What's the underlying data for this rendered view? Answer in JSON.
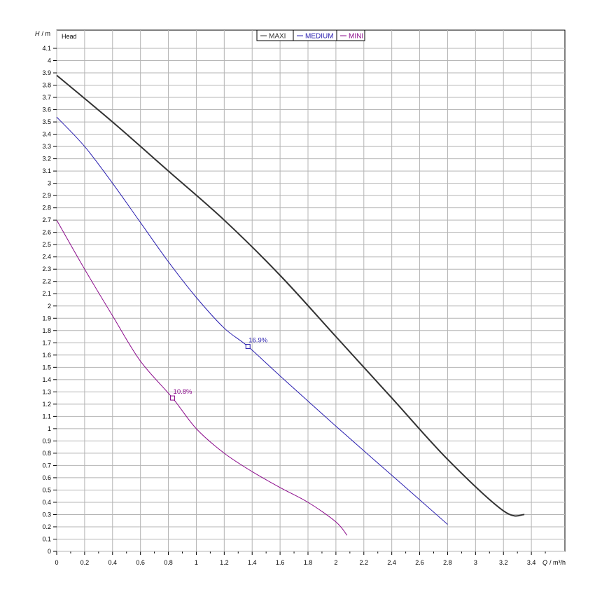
{
  "chart_data": {
    "type": "line",
    "title": "Head",
    "ylabel_symbol": "H",
    "ylabel_unit": "/ m",
    "xlabel_symbol": "Q",
    "xlabel_unit": "/ m³/h",
    "xlim": [
      0,
      3.6
    ],
    "ylim": [
      0,
      4.1
    ],
    "x_ticks": [
      "0",
      "0.2",
      "0.4",
      "0.6",
      "0.8",
      "1",
      "1.2",
      "1.4",
      "1.6",
      "1.8",
      "2",
      "2.2",
      "2.4",
      "2.6",
      "2.8",
      "3",
      "3.2",
      "3.4"
    ],
    "y_ticks": [
      "0",
      "0.1",
      "0.2",
      "0.3",
      "0.4",
      "0.5",
      "0.6",
      "0.7",
      "0.8",
      "0.9",
      "1",
      "1.1",
      "1.2",
      "1.3",
      "1.4",
      "1.5",
      "1.6",
      "1.7",
      "1.8",
      "1.9",
      "2",
      "2.1",
      "2.2",
      "2.3",
      "2.4",
      "2.5",
      "2.6",
      "2.7",
      "2.8",
      "2.9",
      "3",
      "3.1",
      "3.2",
      "3.3",
      "3.4",
      "3.5",
      "3.6",
      "3.7",
      "3.8",
      "3.9",
      "4",
      "4.1"
    ],
    "grid": true,
    "legend_position": "top-center",
    "series": [
      {
        "name": "MAXI",
        "color": "#333333",
        "width": 2,
        "x": [
          0,
          0.4,
          0.8,
          1.2,
          1.6,
          2.0,
          2.4,
          2.8,
          3.2,
          3.35
        ],
        "y": [
          3.88,
          3.5,
          3.1,
          2.7,
          2.25,
          1.75,
          1.25,
          0.75,
          0.33,
          0.3
        ]
      },
      {
        "name": "MEDIUM",
        "color": "#2a1fb0",
        "width": 1,
        "x": [
          0,
          0.2,
          0.4,
          0.6,
          0.8,
          1.0,
          1.2,
          1.37,
          1.6,
          2.0,
          2.4,
          2.8
        ],
        "y": [
          3.54,
          3.3,
          3.0,
          2.68,
          2.36,
          2.07,
          1.82,
          1.67,
          1.43,
          1.02,
          0.62,
          0.22
        ]
      },
      {
        "name": "MINI",
        "color": "#8b0a8b",
        "width": 1,
        "x": [
          0,
          0.2,
          0.4,
          0.6,
          0.83,
          1.0,
          1.2,
          1.4,
          1.6,
          1.8,
          2.0,
          2.08
        ],
        "y": [
          2.7,
          2.3,
          1.92,
          1.55,
          1.25,
          1.0,
          0.8,
          0.65,
          0.52,
          0.4,
          0.24,
          0.13
        ]
      }
    ],
    "annotations": [
      {
        "series": "MEDIUM",
        "x": 1.37,
        "y": 1.67,
        "text": "16.9%",
        "color": "#2a1fb0"
      },
      {
        "series": "MINI",
        "x": 0.83,
        "y": 1.25,
        "text": "10.8%",
        "color": "#8b0a8b"
      }
    ]
  }
}
